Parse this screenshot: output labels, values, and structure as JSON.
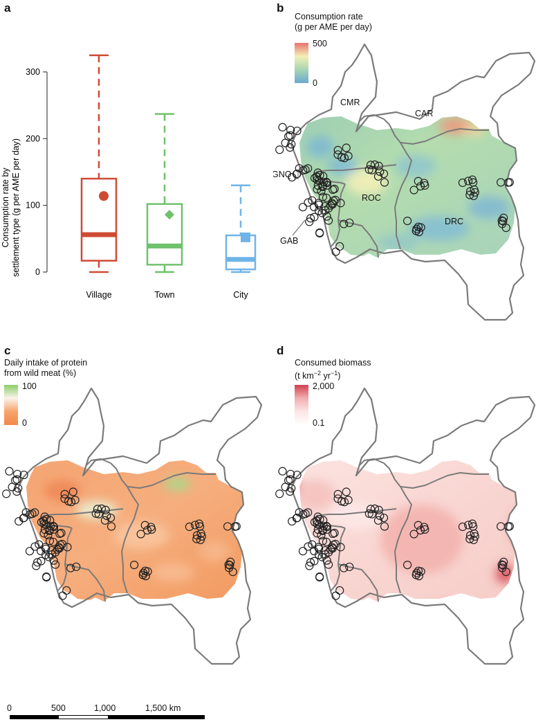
{
  "panels": {
    "a": {
      "letter": "a"
    },
    "b": {
      "letter": "b",
      "legend": {
        "title_line1": "Consumption rate",
        "title_line2": "(g per AME per day)",
        "max": "500",
        "min": "0",
        "colors": [
          "#e8746d",
          "#f3efb5",
          "#a7d5b4",
          "#6aa9cf"
        ]
      },
      "country_labels": [
        "CMR",
        "CAR",
        "GNQ",
        "ROC",
        "DRC",
        "GAB"
      ]
    },
    "c": {
      "letter": "c",
      "legend": {
        "title_line1": "Daily intake of protein",
        "title_line2": "from wild meat (%)",
        "max": "100",
        "min": "0",
        "colors": [
          "#8ccf6c",
          "#fbf2ea",
          "#f7a46a",
          "#f2884a"
        ]
      }
    },
    "d": {
      "letter": "d",
      "legend": {
        "title_line1": "Consumed biomass",
        "title_line2_pre": "(t km",
        "title_line2_sup1": "−2",
        "title_line2_mid": " yr",
        "title_line2_sup2": "−1",
        "title_line2_post": ")",
        "max": "2,000",
        "min": "0.1",
        "colors": [
          "#d1404f",
          "#f1aeb0",
          "#fbe6e6",
          "#ffffff"
        ]
      }
    }
  },
  "chart_data": {
    "type": "box",
    "title": "",
    "ylabel_line1": "Consumption rate by",
    "ylabel_line2": "settlement type (g per AME per day)",
    "ylim": [
      0,
      330
    ],
    "yticks": [
      0,
      100,
      200,
      300
    ],
    "series": [
      {
        "name": "Village",
        "color": "#cf4a33",
        "whisker_low": 0,
        "q1": 17,
        "median": 56,
        "q3": 140,
        "whisker_high": 325,
        "mean": 114,
        "mean_marker": "circle"
      },
      {
        "name": "Town",
        "color": "#6fc16c",
        "whisker_low": 0,
        "q1": 11,
        "median": 39,
        "q3": 102,
        "whisker_high": 237,
        "mean": 86,
        "mean_marker": "diamond"
      },
      {
        "name": "City",
        "color": "#6fb4e8",
        "whisker_low": 0,
        "q1": 4,
        "median": 19,
        "q3": 55,
        "whisker_high": 130,
        "mean": 52,
        "mean_marker": "square"
      }
    ]
  },
  "scale_bar": {
    "labels": [
      "0",
      "500",
      "1,000",
      "1,500 km"
    ]
  }
}
